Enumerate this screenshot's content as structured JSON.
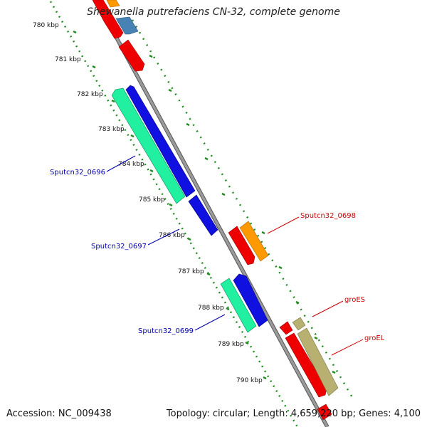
{
  "header": {
    "title": "Shewanella putrefaciens CN-32, complete genome"
  },
  "footer": {
    "accession": "Accession: NC_009438",
    "summary": "Topology: circular; Length: 4,659,220 bp; Genes: 4,100"
  },
  "ruler": {
    "ticks": [
      "780 kbp",
      "781 kbp",
      "782 kbp",
      "783 kbp",
      "784 kbp",
      "785 kbp",
      "786 kbp",
      "787 kbp",
      "788 kbp",
      "789 kbp",
      "790 kbp"
    ]
  },
  "features": {
    "labels": [
      {
        "text": "Sputcn32_0696",
        "color": "#0000aa"
      },
      {
        "text": "Sputcn32_0697",
        "color": "#0000aa"
      },
      {
        "text": "Sputcn32_0699",
        "color": "#0000aa"
      },
      {
        "text": "Sputcn32_0698",
        "color": "#cc0000"
      },
      {
        "text": "groES",
        "color": "#cc0000"
      },
      {
        "text": "groEL",
        "color": "#cc0000"
      }
    ]
  },
  "colors": {
    "backbone": "#8a8a8a",
    "ticks": "#228b22",
    "cds_blue": "#1010e0",
    "cds_green": "#20f0a0",
    "cds_red": "#ee0000",
    "cds_orange": "#ff9900",
    "cds_olive": "#b8b070",
    "cds_steel": "#4682b4"
  }
}
